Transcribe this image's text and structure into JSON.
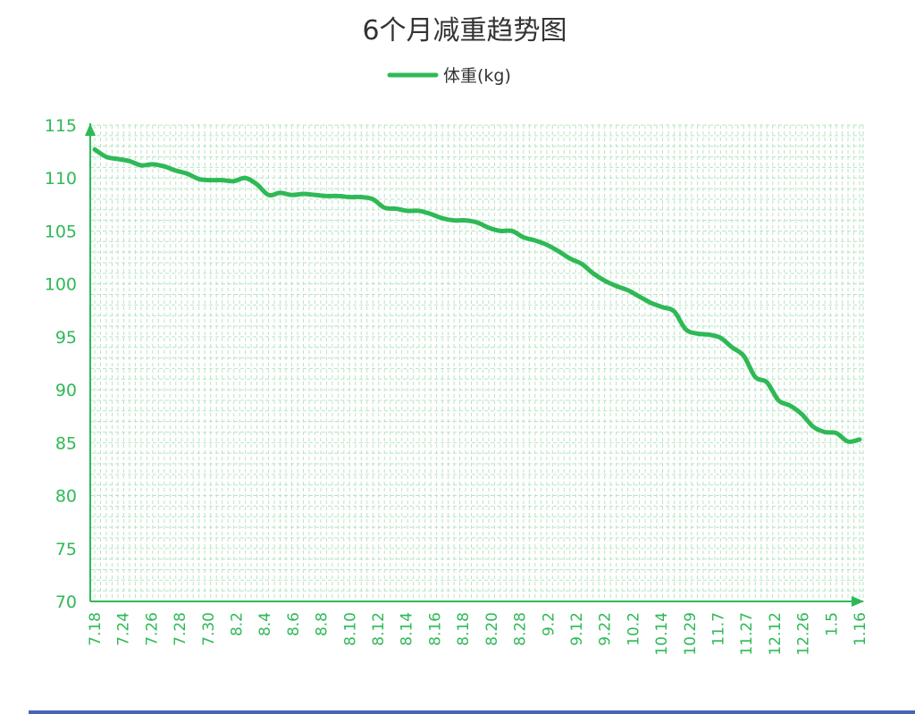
{
  "colors": {
    "line": "#2fb956",
    "axis": "#2fb956",
    "tick_label": "#2fb956",
    "grid": "#b6e5c1",
    "title": "#333333",
    "bottom_bar": "#4a63b8"
  },
  "chart_data": {
    "type": "line",
    "title": "6个月减重趋势图",
    "legend_position": "top-center",
    "grid": true,
    "ylim": [
      70,
      115
    ],
    "y_ticks": [
      "70",
      "75",
      "80",
      "85",
      "90",
      "95",
      "100",
      "105",
      "110",
      "115"
    ],
    "x_tick_labels": [
      "7.18",
      "7.24",
      "7.26",
      "7.28",
      "7.30",
      "8.2",
      "8.4",
      "8.6",
      "8.8",
      "8.10",
      "8.12",
      "8.14",
      "8.16",
      "8.18",
      "8.20",
      "8.28",
      "9.2",
      "9.12",
      "9.22",
      "10.2",
      "10.14",
      "10.29",
      "11.7",
      "11.27",
      "12.12",
      "12.26",
      "1.5",
      "1.16"
    ],
    "series": [
      {
        "name": "体重(kg)",
        "values": [
          112.7,
          112.0,
          111.8,
          111.6,
          111.2,
          111.3,
          111.1,
          110.7,
          110.4,
          109.9,
          109.8,
          109.8,
          109.7,
          110.0,
          109.4,
          108.4,
          108.6,
          108.4,
          108.5,
          108.4,
          108.3,
          108.3,
          108.2,
          108.2,
          108.0,
          107.2,
          107.1,
          106.9,
          106.9,
          106.6,
          106.2,
          106.0,
          106.0,
          105.8,
          105.3,
          105.0,
          105.0,
          104.4,
          104.1,
          103.7,
          103.1,
          102.4,
          101.9,
          101.0,
          100.3,
          99.8,
          99.4,
          98.8,
          98.2,
          97.8,
          97.4,
          95.7,
          95.3,
          95.2,
          94.9,
          94.0,
          93.2,
          91.2,
          90.7,
          89.0,
          88.5,
          87.7,
          86.5,
          86.0,
          85.9,
          85.1,
          85.3
        ]
      }
    ]
  }
}
